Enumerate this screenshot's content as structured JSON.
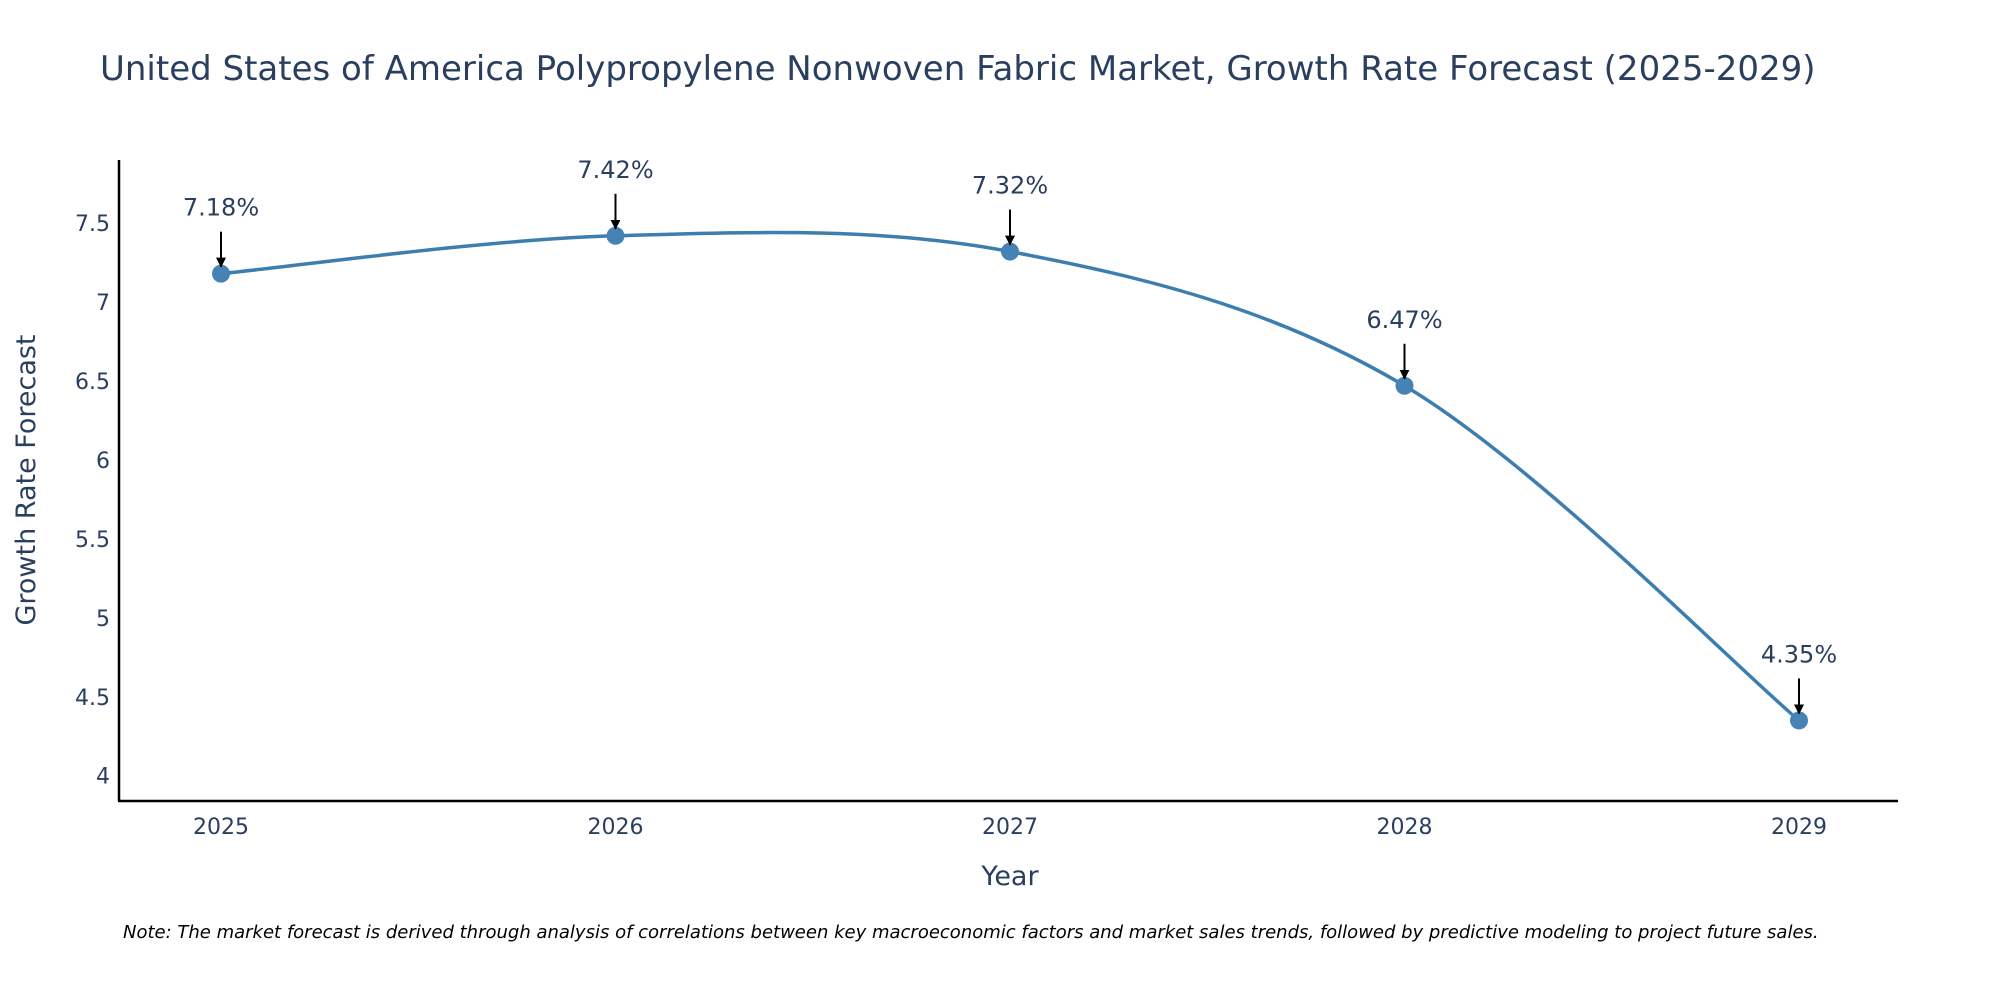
{
  "chart_data": {
    "type": "line",
    "title": "United States of America Polypropylene Nonwoven Fabric Market, Growth Rate Forecast (2025-2029)",
    "xlabel": "Year",
    "ylabel": "Growth Rate Forecast",
    "categories": [
      "2025",
      "2026",
      "2027",
      "2028",
      "2029"
    ],
    "values": [
      7.18,
      7.42,
      7.32,
      6.47,
      4.35
    ],
    "data_labels": [
      "7.18%",
      "7.42%",
      "7.32%",
      "6.47%",
      "4.35%"
    ],
    "y_ticks": [
      4,
      4.5,
      5,
      5.5,
      6,
      6.5,
      7,
      7.5
    ],
    "y_tick_labels": [
      "4",
      "4.5",
      "5",
      "5.5",
      "6",
      "6.5",
      "7",
      "7.5"
    ],
    "ylim": [
      3.84,
      7.9
    ],
    "grid": false,
    "line_shape": "spline",
    "colors": {
      "line": "#3d7eb0",
      "marker": "#4682b4",
      "axis": "#000000",
      "text": "#2a3f5f"
    }
  },
  "note": "Note: The market forecast is derived through analysis of correlations between key macroeconomic factors and market sales trends, followed by predictive modeling to project future sales."
}
